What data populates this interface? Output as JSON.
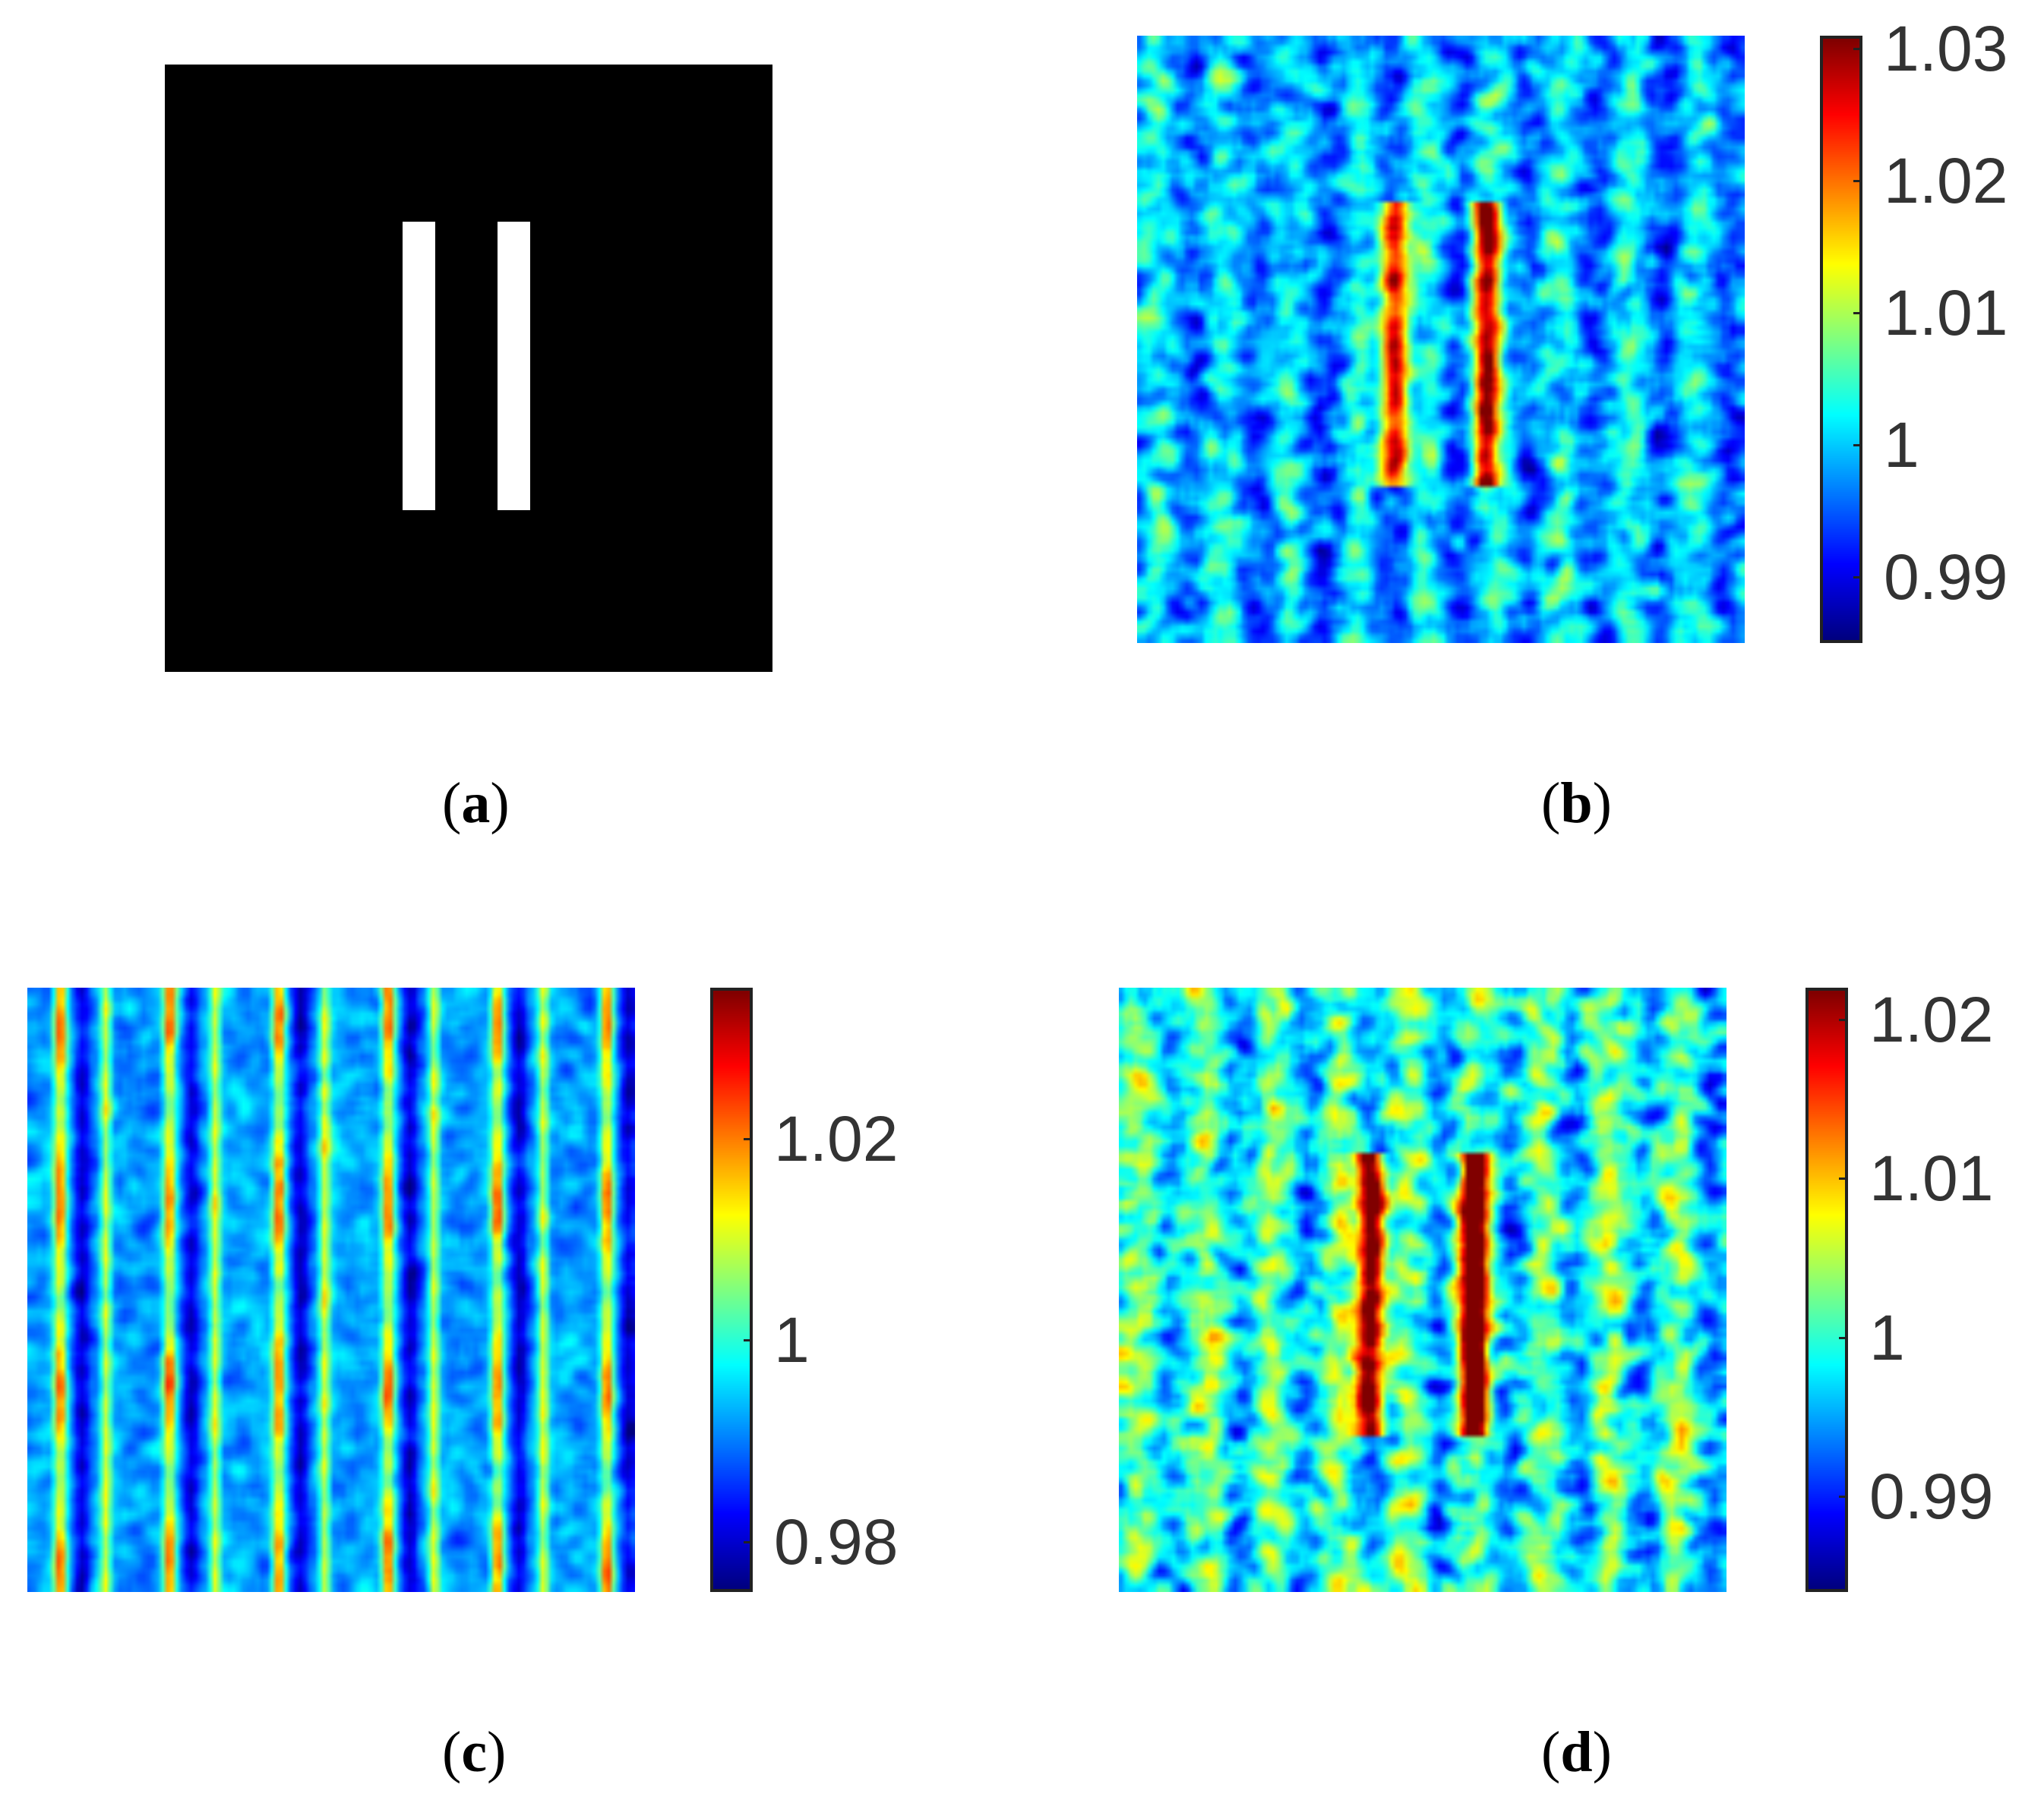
{
  "chart_data": [
    {
      "type": "image",
      "panel": "a",
      "caption_open": "(",
      "caption_letter": "a",
      "caption_close": ")",
      "description_values": {
        "background": "black",
        "bars": 2
      }
    },
    {
      "type": "heatmap",
      "panel": "b",
      "caption_open": "(",
      "caption_letter": "b",
      "caption_close": ")",
      "colormap": "jet",
      "clim": [
        0.985,
        1.031
      ],
      "ticks": [
        1.03,
        1.02,
        1.01,
        1,
        0.99
      ],
      "tick_labels": [
        "1.03",
        "1.02",
        "1.01",
        "1",
        "0.99"
      ],
      "pattern": "bars",
      "seed": 11
    },
    {
      "type": "heatmap",
      "panel": "c",
      "caption_open": "(",
      "caption_letter": "c",
      "caption_close": ")",
      "colormap": "jet",
      "clim": [
        0.975,
        1.035
      ],
      "ticks": [
        1.02,
        1,
        0.98
      ],
      "tick_labels": [
        "1.02",
        "1",
        "0.98"
      ],
      "pattern": "stripes",
      "seed": 23
    },
    {
      "type": "heatmap",
      "panel": "d",
      "caption_open": "(",
      "caption_letter": "d",
      "caption_close": ")",
      "colormap": "jet",
      "clim": [
        0.984,
        1.022
      ],
      "ticks": [
        1.02,
        1.01,
        1,
        0.99
      ],
      "tick_labels": [
        "1.02",
        "1.01",
        "1",
        "0.99"
      ],
      "pattern": "bars",
      "seed": 37
    }
  ]
}
